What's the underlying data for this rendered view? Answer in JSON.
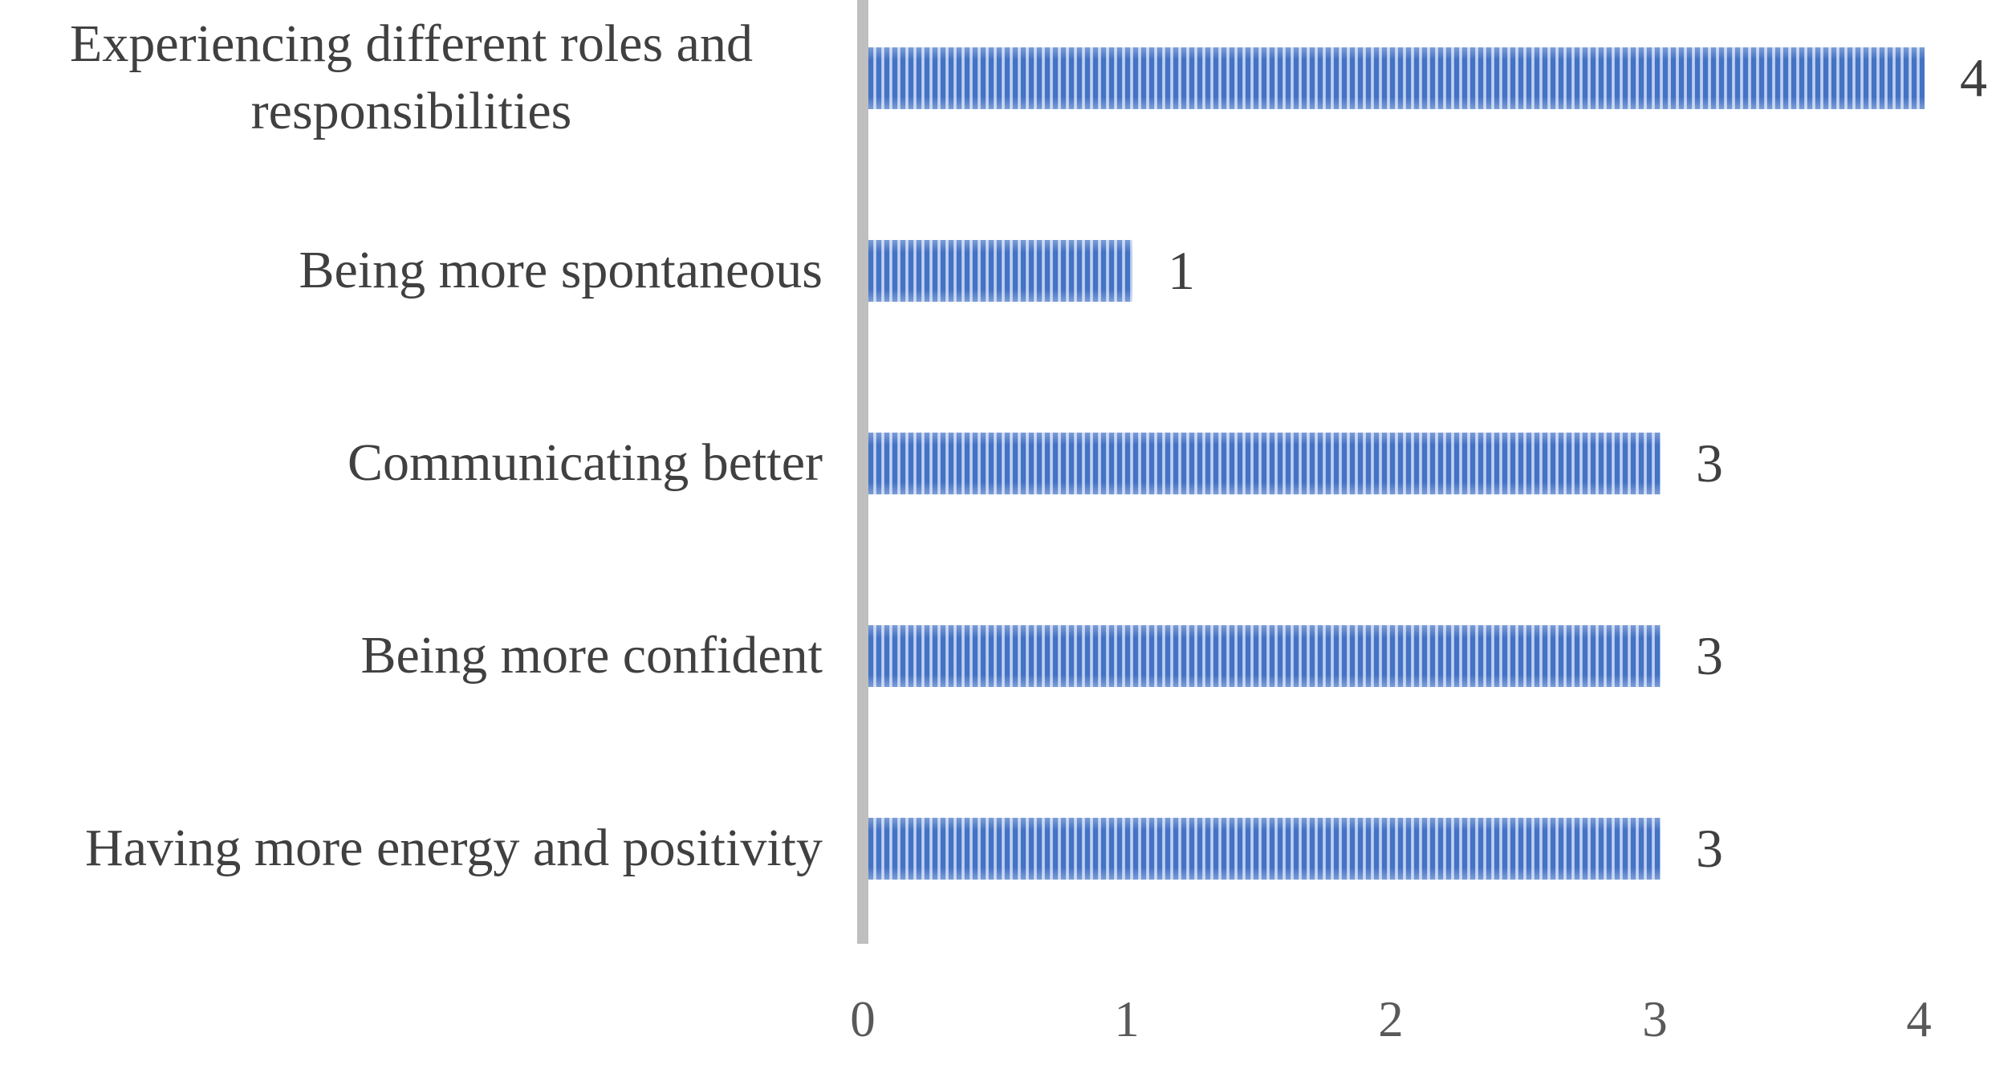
{
  "chart_data": {
    "type": "bar",
    "orientation": "horizontal",
    "title": "",
    "xlabel": "",
    "ylabel": "",
    "categories": [
      "Experiencing different roles and responsibilities",
      "Being more spontaneous",
      "Communicating better",
      "Being more confident",
      "Having more energy and positivity"
    ],
    "values": [
      4,
      1,
      3,
      3,
      3
    ],
    "data_labels": [
      "4",
      "1",
      "3",
      "3",
      "3"
    ],
    "xticks": [
      "0",
      "1",
      "2",
      "3",
      "4"
    ],
    "xlim": [
      0,
      4
    ],
    "grid": false,
    "legend": "none",
    "bar_pattern": "vertical-stripes",
    "colors": {
      "stripe_foreground": "#4472C4",
      "stripe_background": "#B7C9EE",
      "axis_line": "#BFBFBF",
      "category_label_text": "#404040",
      "data_label_text": "#404040",
      "tick_label_text": "#595959",
      "plot_background": "#FFFFFF"
    }
  }
}
